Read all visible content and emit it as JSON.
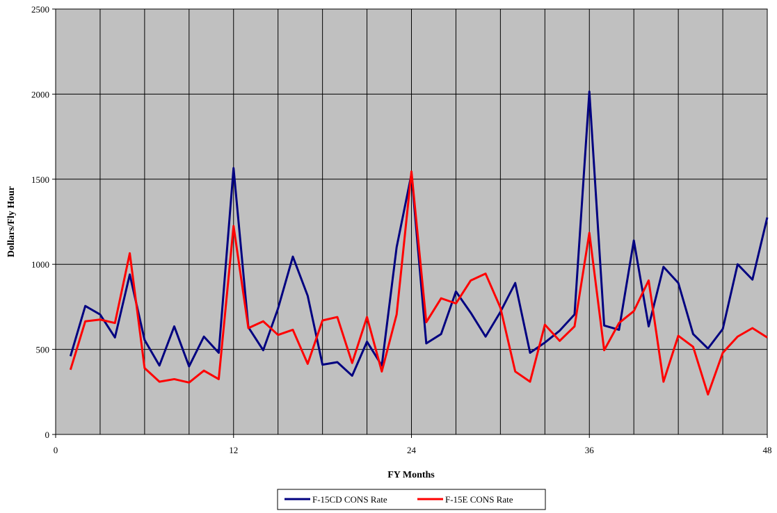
{
  "chart_data": {
    "type": "line",
    "xlabel": "FY Months",
    "ylabel": "Dollars/Fly Hour",
    "xlim": [
      0,
      48
    ],
    "ylim": [
      0,
      2500
    ],
    "x_ticks": [
      0,
      12,
      24,
      36,
      48
    ],
    "y_ticks": [
      0,
      500,
      1000,
      1500,
      2000,
      2500
    ],
    "vertical_gridlines_every": 3,
    "grid": true,
    "plot_background": "#c0c0c0",
    "legend_position": "bottom-center",
    "x": [
      1,
      2,
      3,
      4,
      5,
      6,
      7,
      8,
      9,
      10,
      11,
      12,
      13,
      14,
      15,
      16,
      17,
      18,
      19,
      20,
      21,
      22,
      23,
      24,
      25,
      26,
      27,
      28,
      29,
      30,
      31,
      32,
      33,
      34,
      35,
      36,
      37,
      38,
      39,
      40,
      41,
      42,
      43,
      44,
      45,
      46,
      47,
      48
    ],
    "series": [
      {
        "name": "F-15CD CONS Rate",
        "color": "#000080",
        "values": [
          460,
          755,
          705,
          570,
          940,
          555,
          405,
          635,
          400,
          575,
          480,
          1565,
          630,
          495,
          740,
          1045,
          815,
          410,
          425,
          345,
          545,
          405,
          1100,
          1530,
          535,
          590,
          840,
          715,
          575,
          720,
          890,
          480,
          540,
          610,
          705,
          2015,
          640,
          615,
          1140,
          635,
          985,
          890,
          590,
          505,
          620,
          1000,
          910,
          1275
        ]
      },
      {
        "name": "F-15E CONS Rate",
        "color": "#ff0000",
        "values": [
          380,
          665,
          675,
          655,
          1065,
          390,
          310,
          325,
          305,
          375,
          325,
          1225,
          625,
          665,
          585,
          615,
          415,
          670,
          690,
          420,
          690,
          370,
          705,
          1545,
          660,
          800,
          770,
          905,
          945,
          745,
          370,
          310,
          645,
          550,
          635,
          1185,
          495,
          655,
          725,
          905,
          310,
          580,
          515,
          235,
          480,
          575,
          625,
          570
        ]
      }
    ]
  }
}
